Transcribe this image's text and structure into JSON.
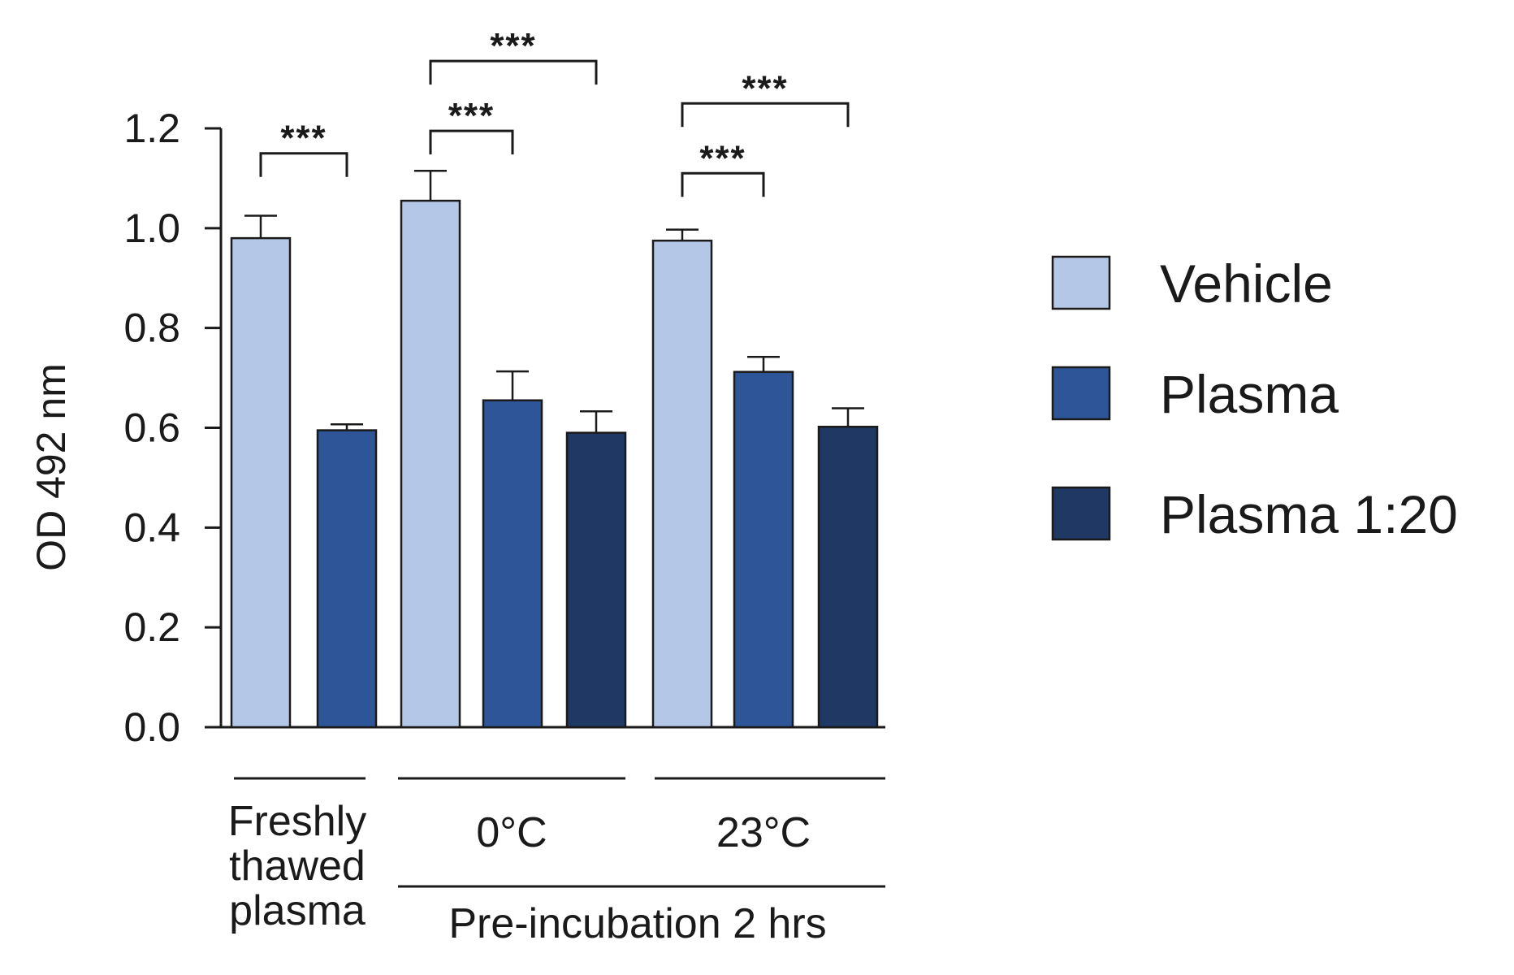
{
  "chart_data": {
    "type": "bar",
    "title": "",
    "xlabel": "",
    "ylabel": "OD 492 nm",
    "ylim": [
      0,
      1.2
    ],
    "yticks": [
      0.0,
      0.2,
      0.4,
      0.6,
      0.8,
      1.0,
      1.2
    ],
    "ytick_labels": [
      "0.0",
      "0.2",
      "0.4",
      "0.6",
      "0.8",
      "1.0",
      "1.2"
    ],
    "grid": false,
    "legend_position": "right",
    "series": [
      {
        "name": "Vehicle",
        "color": "#b4c7e7"
      },
      {
        "name": "Plasma",
        "color": "#2e5597"
      },
      {
        "name": "Plasma  1:20",
        "color": "#203864"
      }
    ],
    "groups": [
      {
        "label_lines": [
          "Freshly",
          "thawed",
          "plasma"
        ],
        "bars": [
          {
            "series": "Vehicle",
            "value": 0.98,
            "error": 0.045
          },
          {
            "series": "Plasma",
            "value": 0.595,
            "error": 0.012
          }
        ]
      },
      {
        "label_lines": [
          "0°C"
        ],
        "bars": [
          {
            "series": "Vehicle",
            "value": 1.055,
            "error": 0.06
          },
          {
            "series": "Plasma",
            "value": 0.655,
            "error": 0.058
          },
          {
            "series": "Plasma  1:20",
            "value": 0.59,
            "error": 0.043
          }
        ]
      },
      {
        "label_lines": [
          "23°C"
        ],
        "bars": [
          {
            "series": "Vehicle",
            "value": 0.975,
            "error": 0.022
          },
          {
            "series": "Plasma",
            "value": 0.712,
            "error": 0.03
          },
          {
            "series": "Plasma  1:20",
            "value": 0.602,
            "error": 0.037
          }
        ]
      }
    ],
    "super_group_label": "Pre-incubation 2 hrs",
    "significance": [
      {
        "group": 0,
        "from": 0,
        "to": 1,
        "label": "***",
        "level": 1.15
      },
      {
        "group": 1,
        "from": 0,
        "to": 1,
        "label": "***",
        "level": 1.195
      },
      {
        "group": 1,
        "from": 0,
        "to": 2,
        "label": "***",
        "level": 1.335
      },
      {
        "group": 2,
        "from": 0,
        "to": 1,
        "label": "***",
        "level": 1.11
      },
      {
        "group": 2,
        "from": 0,
        "to": 2,
        "label": "***",
        "level": 1.25
      }
    ]
  }
}
